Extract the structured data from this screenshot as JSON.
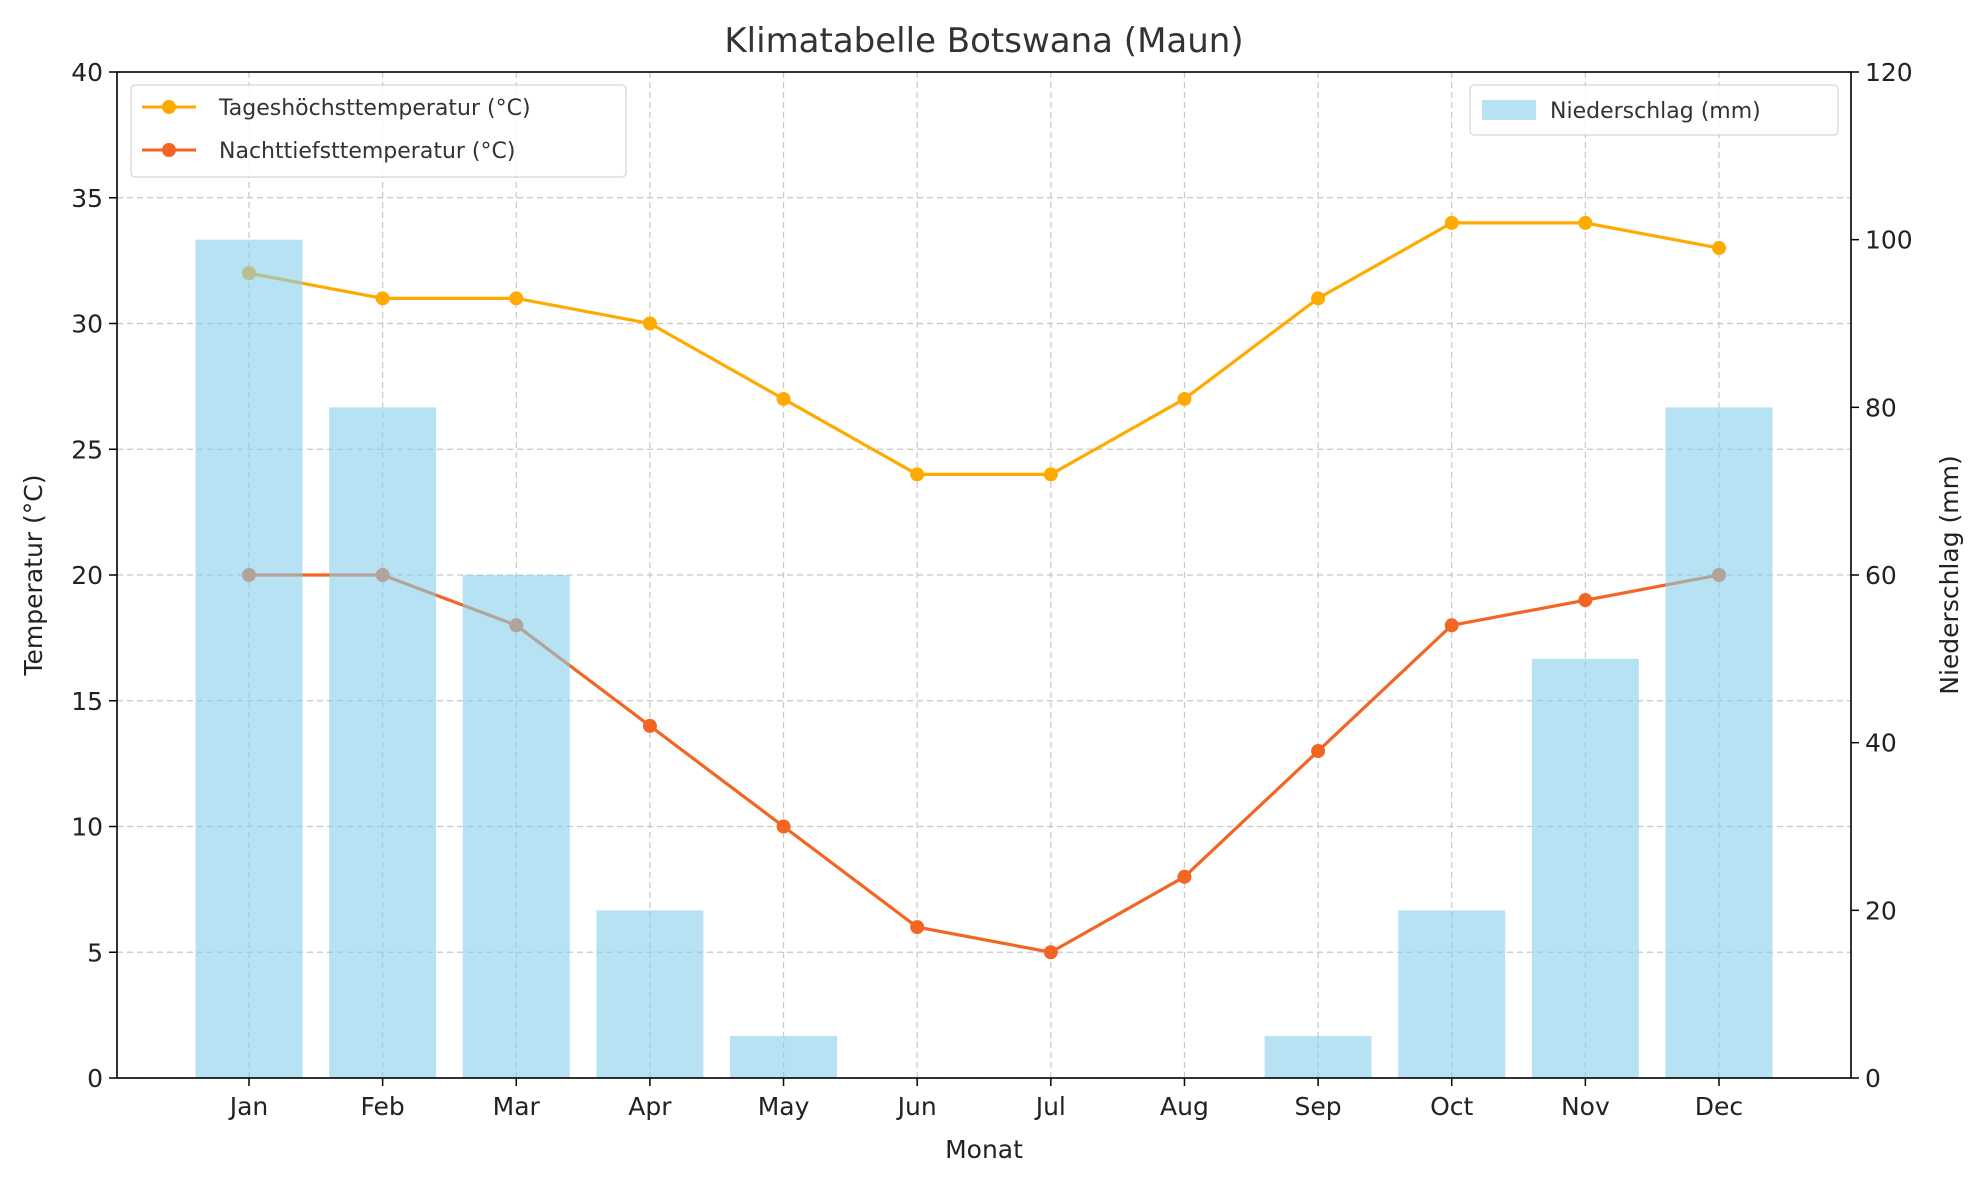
{
  "chart_data": {
    "type": "bar+line",
    "title": "Klimatabelle Botswana (Maun)",
    "xlabel": "Monat",
    "ylabel_left": "Temperatur (°C)",
    "ylabel_right": "Niederschlag (mm)",
    "categories": [
      "Jan",
      "Feb",
      "Mar",
      "Apr",
      "May",
      "Jun",
      "Jul",
      "Aug",
      "Sep",
      "Oct",
      "Nov",
      "Dec"
    ],
    "ylim_left": [
      0,
      40
    ],
    "ylim_right": [
      0,
      120
    ],
    "yticks_left": [
      0,
      5,
      10,
      15,
      20,
      25,
      30,
      35,
      40
    ],
    "yticks_right": [
      0,
      20,
      40,
      60,
      80,
      100,
      120
    ],
    "grid": true,
    "series": [
      {
        "name": "Tageshöchsttemperatur (°C)",
        "type": "line",
        "axis": "left",
        "color": "#FFAA00",
        "values": [
          32,
          31,
          31,
          30,
          27,
          24,
          24,
          27,
          31,
          34,
          34,
          33
        ]
      },
      {
        "name": "Nachttiefsttemperatur (°C)",
        "type": "line",
        "axis": "left",
        "color": "#F26522",
        "values": [
          20,
          20,
          18,
          14,
          10,
          6,
          5,
          8,
          13,
          18,
          19,
          20
        ]
      },
      {
        "name": "Niederschlag (mm)",
        "type": "bar",
        "axis": "right",
        "color": "#87CEEB",
        "values": [
          100,
          80,
          60,
          20,
          5,
          0,
          0,
          0,
          5,
          20,
          50,
          80
        ]
      }
    ],
    "legend_left_placement": "top-left",
    "legend_right_placement": "top-right"
  }
}
